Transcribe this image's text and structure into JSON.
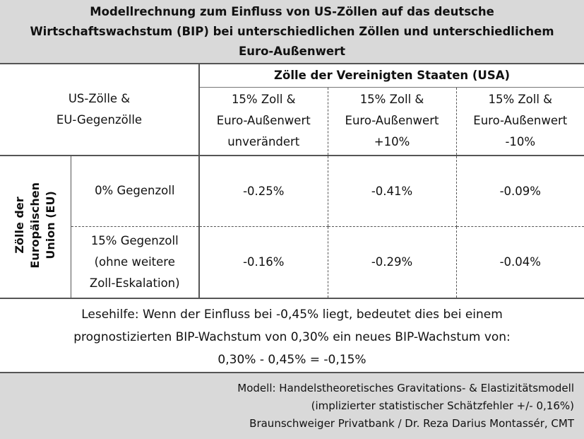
{
  "title": {
    "line1": "Modellrechnung zum Einfluss von US-Zöllen auf das deutsche",
    "line2": "Wirtschaftswachstum (BIP) bei unterschiedlichen Zöllen und unterschiedlichem",
    "line3": "Euro-Außenwert"
  },
  "corner": {
    "line1": "US-Zölle &",
    "line2": "EU-Gegenzölle"
  },
  "usa_header": "Zölle der Vereinigten Staaten (USA)",
  "columns": [
    {
      "line1": "15% Zoll &",
      "line2": "Euro-Außenwert",
      "line3": "unverändert"
    },
    {
      "line1": "15% Zoll &",
      "line2": "Euro-Außenwert",
      "line3": "+10%"
    },
    {
      "line1": "15% Zoll &",
      "line2": "Euro-Außenwert",
      "line3": "-10%"
    }
  ],
  "eu_side": {
    "line1": "Zölle der",
    "line2": "Europäischen",
    "line3": "Union (EU)"
  },
  "rows": [
    {
      "label1": "0% Gegenzoll",
      "values": [
        "-0.25%",
        "-0.41%",
        "-0.09%"
      ]
    },
    {
      "label1": "15% Gegenzoll",
      "label2": "(ohne weitere",
      "label3": "Zoll-Eskalation)",
      "values": [
        "-0.16%",
        "-0.29%",
        "-0.04%"
      ]
    }
  ],
  "hint": {
    "line1": "Lesehilfe: Wenn der Einfluss bei -0,45% liegt, bedeutet dies bei einem",
    "line2": "prognostizierten BIP-Wachstum von 0,30% ein neues BIP-Wachstum von:",
    "line3": "0,30% - 0,45% = -0,15%"
  },
  "footer": {
    "line1": "Modell: Handelstheoretisches Gravitations- & Elastizitätsmodell",
    "line2": "(implizierter statistischer Schätzfehler +/- 0,16%)",
    "line3": "Braunschweiger Privatbank / Dr. Reza Darius Montassér, CMT"
  }
}
